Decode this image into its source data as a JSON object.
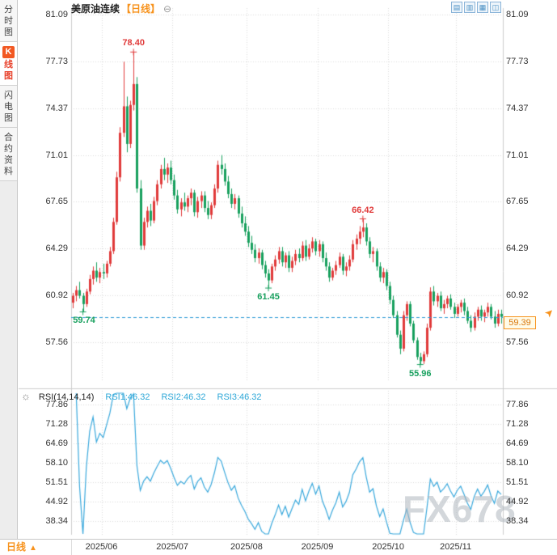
{
  "sidebar": {
    "tabs": [
      {
        "id": "timeshare",
        "label": "分时图",
        "active": false
      },
      {
        "id": "kline",
        "label": "K线图",
        "active": true
      },
      {
        "id": "lightning",
        "label": "闪电图",
        "active": false
      },
      {
        "id": "contract-info",
        "label": "合约资料",
        "active": false
      }
    ]
  },
  "chart_header": {
    "title": "美原油连续",
    "period_tag": "【日线】",
    "collapse_icon": "⊖"
  },
  "toolbar": {
    "icons": [
      {
        "name": "bar-chart-icon",
        "glyph": "▤"
      },
      {
        "name": "candlestick-chart-icon",
        "glyph": "▥"
      },
      {
        "name": "line-chart-icon",
        "glyph": "▦"
      },
      {
        "name": "area-chart-icon",
        "glyph": "◫"
      }
    ]
  },
  "price_marker": {
    "label": "59.39",
    "arrow_icon": "➤"
  },
  "rsi_header": {
    "settings_icon": "☼"
  },
  "watermark": {
    "text": "FX678"
  },
  "bottom_bar": {
    "period_label": "日线",
    "arrow_icon": "▲"
  },
  "colors": {
    "up": "#e03a3a",
    "down": "#18a05e",
    "rsi_line": "#39a8dc",
    "rsi_value_text": "#2ea8d8",
    "grid": "#d9d9d9",
    "price_line": "#2e9bd6",
    "accent": "#f7931e",
    "watermark": "#b9c0c8"
  },
  "chart_data": {
    "type": "candlestick",
    "symbol": "美原油连续",
    "period": "日线",
    "y_ticks": [
      "81.09",
      "77.73",
      "74.37",
      "71.01",
      "67.65",
      "64.29",
      "60.92",
      "57.56"
    ],
    "ylim": [
      54.8,
      82.1
    ],
    "x_ticks": [
      {
        "label": "2025/06",
        "index": 9
      },
      {
        "label": "2025/07",
        "index": 30
      },
      {
        "label": "2025/08",
        "index": 52
      },
      {
        "label": "2025/09",
        "index": 73
      },
      {
        "label": "2025/10",
        "index": 94
      },
      {
        "label": "2025/11",
        "index": 114
      }
    ],
    "current_price": 59.39,
    "annotations": [
      {
        "text": "78.40",
        "index": 18,
        "value": 78.4,
        "side": "high"
      },
      {
        "text": "66.42",
        "index": 86,
        "value": 66.42,
        "side": "high"
      },
      {
        "text": "61.45",
        "index": 58,
        "value": 61.45,
        "side": "low"
      },
      {
        "text": "59.74",
        "index": 3,
        "value": 59.74,
        "side": "low"
      },
      {
        "text": "55.96",
        "index": 103,
        "value": 55.96,
        "side": "low"
      }
    ],
    "candles": [
      [
        60.4,
        61.1,
        60.0,
        60.9
      ],
      [
        60.9,
        61.6,
        60.5,
        61.3
      ],
      [
        61.3,
        61.9,
        60.7,
        60.9
      ],
      [
        60.9,
        61.1,
        59.74,
        60.3
      ],
      [
        60.3,
        61.4,
        60.1,
        61.2
      ],
      [
        61.2,
        62.4,
        61.0,
        62.1
      ],
      [
        62.1,
        63.0,
        61.7,
        62.7
      ],
      [
        62.7,
        63.3,
        61.9,
        62.2
      ],
      [
        62.2,
        62.9,
        61.8,
        62.6
      ],
      [
        62.6,
        63.2,
        62.1,
        62.5
      ],
      [
        62.5,
        63.4,
        62.2,
        63.2
      ],
      [
        63.2,
        64.4,
        63.0,
        64.1
      ],
      [
        64.1,
        66.5,
        63.9,
        66.2
      ],
      [
        66.2,
        69.8,
        66.0,
        69.4
      ],
      [
        69.4,
        73.0,
        69.1,
        72.6
      ],
      [
        72.6,
        77.7,
        72.3,
        74.5
      ],
      [
        74.5,
        75.2,
        71.2,
        71.8
      ],
      [
        71.8,
        74.9,
        71.5,
        74.6
      ],
      [
        74.6,
        78.4,
        74.2,
        76.1
      ],
      [
        76.1,
        76.6,
        68.3,
        68.6
      ],
      [
        68.6,
        69.2,
        64.2,
        64.5
      ],
      [
        64.5,
        66.5,
        64.2,
        66.2
      ],
      [
        66.2,
        67.3,
        65.8,
        67.0
      ],
      [
        67.0,
        67.5,
        65.9,
        66.3
      ],
      [
        66.3,
        68.0,
        66.1,
        67.7
      ],
      [
        67.7,
        69.2,
        67.4,
        68.9
      ],
      [
        68.9,
        70.3,
        68.6,
        70.0
      ],
      [
        70.0,
        70.8,
        69.2,
        69.6
      ],
      [
        69.6,
        70.4,
        69.0,
        70.1
      ],
      [
        70.1,
        70.6,
        68.9,
        69.2
      ],
      [
        69.2,
        69.6,
        67.8,
        68.1
      ],
      [
        68.1,
        68.5,
        66.8,
        67.1
      ],
      [
        67.1,
        67.9,
        66.6,
        67.6
      ],
      [
        67.6,
        68.3,
        67.0,
        67.3
      ],
      [
        67.3,
        68.1,
        66.9,
        67.9
      ],
      [
        67.9,
        68.6,
        67.4,
        68.3
      ],
      [
        68.3,
        68.5,
        66.6,
        66.9
      ],
      [
        66.9,
        68.0,
        66.5,
        67.7
      ],
      [
        67.7,
        68.4,
        67.2,
        68.1
      ],
      [
        68.1,
        68.4,
        66.9,
        67.2
      ],
      [
        67.2,
        67.7,
        66.4,
        66.7
      ],
      [
        66.7,
        67.6,
        66.4,
        67.4
      ],
      [
        67.4,
        68.9,
        67.2,
        68.6
      ],
      [
        68.6,
        70.6,
        68.3,
        70.3
      ],
      [
        70.3,
        71.0,
        69.6,
        70.0
      ],
      [
        70.0,
        70.4,
        68.8,
        69.1
      ],
      [
        69.1,
        69.5,
        67.9,
        68.2
      ],
      [
        68.2,
        68.6,
        67.2,
        67.5
      ],
      [
        67.5,
        68.2,
        67.1,
        67.9
      ],
      [
        67.9,
        68.1,
        66.5,
        66.8
      ],
      [
        66.8,
        67.3,
        65.8,
        66.1
      ],
      [
        66.1,
        66.6,
        65.2,
        65.5
      ],
      [
        65.5,
        65.9,
        64.4,
        64.7
      ],
      [
        64.7,
        65.2,
        63.9,
        64.2
      ],
      [
        64.2,
        64.6,
        63.3,
        63.6
      ],
      [
        63.6,
        64.3,
        63.2,
        64.0
      ],
      [
        64.0,
        64.2,
        62.8,
        63.1
      ],
      [
        63.1,
        63.4,
        62.2,
        62.5
      ],
      [
        62.5,
        62.8,
        61.45,
        62.0
      ],
      [
        62.0,
        63.2,
        61.8,
        63.0
      ],
      [
        63.0,
        63.8,
        62.7,
        63.5
      ],
      [
        63.5,
        64.4,
        63.2,
        64.1
      ],
      [
        64.1,
        64.4,
        63.0,
        63.3
      ],
      [
        63.3,
        64.0,
        62.9,
        63.8
      ],
      [
        63.8,
        64.1,
        62.6,
        62.9
      ],
      [
        62.9,
        63.7,
        62.6,
        63.4
      ],
      [
        63.4,
        64.2,
        63.1,
        63.9
      ],
      [
        63.9,
        64.3,
        63.3,
        63.6
      ],
      [
        63.6,
        64.8,
        63.4,
        64.5
      ],
      [
        64.5,
        64.9,
        63.4,
        63.7
      ],
      [
        63.7,
        64.6,
        63.5,
        64.3
      ],
      [
        64.3,
        65.1,
        64.0,
        64.8
      ],
      [
        64.8,
        65.0,
        63.8,
        64.1
      ],
      [
        64.1,
        64.9,
        63.7,
        64.6
      ],
      [
        64.6,
        64.8,
        63.3,
        63.6
      ],
      [
        63.6,
        64.0,
        62.7,
        63.0
      ],
      [
        63.0,
        63.3,
        61.9,
        62.2
      ],
      [
        62.2,
        62.9,
        62.0,
        62.7
      ],
      [
        62.7,
        63.4,
        62.4,
        63.1
      ],
      [
        63.1,
        64.0,
        62.9,
        63.7
      ],
      [
        63.7,
        63.9,
        62.4,
        62.7
      ],
      [
        62.7,
        63.3,
        62.3,
        63.0
      ],
      [
        63.0,
        63.8,
        62.7,
        63.5
      ],
      [
        63.5,
        64.9,
        63.3,
        64.6
      ],
      [
        64.6,
        65.3,
        64.2,
        65.0
      ],
      [
        65.0,
        65.9,
        64.6,
        65.5
      ],
      [
        65.5,
        66.42,
        65.1,
        65.8
      ],
      [
        65.8,
        66.1,
        64.5,
        64.8
      ],
      [
        64.8,
        65.1,
        63.6,
        63.9
      ],
      [
        63.9,
        64.4,
        63.3,
        64.1
      ],
      [
        64.1,
        64.3,
        62.7,
        63.0
      ],
      [
        63.0,
        63.3,
        61.9,
        62.2
      ],
      [
        62.2,
        62.9,
        61.8,
        62.6
      ],
      [
        62.6,
        62.8,
        61.3,
        61.6
      ],
      [
        61.6,
        61.9,
        60.3,
        60.6
      ],
      [
        60.6,
        60.9,
        59.3,
        59.5
      ],
      [
        59.5,
        59.8,
        57.9,
        58.1
      ],
      [
        58.1,
        58.4,
        56.7,
        57.1
      ],
      [
        57.1,
        59.8,
        56.9,
        59.5
      ],
      [
        59.5,
        60.5,
        59.1,
        60.3
      ],
      [
        60.3,
        60.5,
        58.7,
        58.9
      ],
      [
        58.9,
        59.1,
        57.5,
        57.7
      ],
      [
        57.7,
        57.9,
        56.3,
        56.5
      ],
      [
        56.5,
        56.8,
        55.96,
        56.2
      ],
      [
        56.2,
        56.9,
        56.0,
        56.7
      ],
      [
        56.7,
        58.9,
        56.5,
        58.6
      ],
      [
        58.6,
        61.5,
        58.4,
        61.2
      ],
      [
        61.2,
        61.6,
        60.2,
        60.5
      ],
      [
        60.5,
        61.1,
        60.1,
        60.9
      ],
      [
        60.9,
        61.2,
        59.8,
        60.0
      ],
      [
        60.0,
        60.6,
        59.6,
        60.3
      ],
      [
        60.3,
        60.9,
        60.0,
        60.7
      ],
      [
        60.7,
        61.0,
        59.9,
        60.1
      ],
      [
        60.1,
        60.4,
        59.3,
        59.6
      ],
      [
        59.6,
        60.3,
        59.4,
        60.1
      ],
      [
        60.1,
        60.6,
        59.7,
        60.4
      ],
      [
        60.4,
        60.7,
        59.5,
        59.8
      ],
      [
        59.8,
        60.1,
        58.9,
        59.1
      ],
      [
        59.1,
        59.5,
        58.3,
        58.6
      ],
      [
        58.6,
        59.7,
        58.4,
        59.4
      ],
      [
        59.4,
        60.1,
        59.1,
        59.9
      ],
      [
        59.9,
        60.2,
        59.1,
        59.4
      ],
      [
        59.4,
        59.9,
        59.0,
        59.7
      ],
      [
        59.7,
        60.4,
        59.4,
        60.1
      ],
      [
        60.1,
        60.3,
        59.2,
        59.4
      ],
      [
        59.4,
        59.8,
        58.6,
        58.9
      ],
      [
        58.9,
        59.9,
        58.7,
        59.6
      ],
      [
        59.6,
        59.9,
        58.9,
        59.39
      ]
    ],
    "rsi": {
      "label": "RSI(14,14,14)",
      "series_labels": [
        "RSI1:46.32",
        "RSI2:46.32",
        "RSI3:46.32"
      ],
      "period": 14,
      "y_ticks": [
        "77.86",
        "71.28",
        "64.69",
        "58.10",
        "51.51",
        "44.92",
        "38.34"
      ]
    }
  }
}
